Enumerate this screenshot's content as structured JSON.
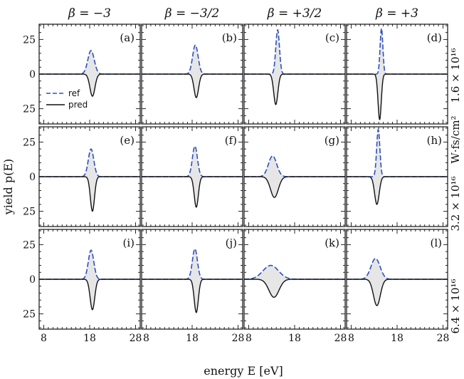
{
  "figure": {
    "ylabel": "yield p(E)",
    "xlabel": "energy E [eV]",
    "intensity_unit": "W·fs/cm²",
    "column_titles": [
      "β = −3",
      "β = −3/2",
      "β = +3/2",
      "β = +3"
    ],
    "row_titles": [
      "1.6 × 10¹⁶",
      "3.2 × 10¹⁶",
      "6.4 × 10¹⁶"
    ],
    "legend": {
      "ref": "ref",
      "pred": "pred"
    }
  },
  "chart_data": {
    "type": "line",
    "layout": "grid 3 rows × 4 columns, shared axes",
    "xlim": [
      7,
      29
    ],
    "ylim": [
      -36,
      36
    ],
    "x_ticks": [
      8,
      18,
      28
    ],
    "x_tick_labels": [
      "8",
      "18",
      "28"
    ],
    "y_ticks": [
      25,
      0,
      -25
    ],
    "y_tick_labels": [
      "25",
      "0",
      "25"
    ],
    "colors": {
      "ref": "#2f4fbf",
      "pred": "#111111",
      "fill": "#e6e6e6"
    },
    "series_note": "ref plotted upward (dashed blue), pred plotted downward (solid black), each peak is a single spectral line",
    "panels": [
      {
        "label": "(a)",
        "row": 0,
        "col": 0,
        "ref_peak": {
          "center": 18.3,
          "height": 17,
          "width": 0.7
        },
        "pred_peak": {
          "center": 18.6,
          "height": 16,
          "width": 0.55
        }
      },
      {
        "label": "(b)",
        "row": 0,
        "col": 1,
        "ref_peak": {
          "center": 18.7,
          "height": 21,
          "width": 0.6
        },
        "pred_peak": {
          "center": 18.9,
          "height": 17,
          "width": 0.5
        }
      },
      {
        "label": "(c)",
        "row": 0,
        "col": 2,
        "ref_peak": {
          "center": 14.3,
          "height": 32,
          "width": 0.4
        },
        "pred_peak": {
          "center": 13.9,
          "height": 22,
          "width": 0.45
        }
      },
      {
        "label": "(d)",
        "row": 0,
        "col": 3,
        "ref_peak": {
          "center": 14.6,
          "height": 33,
          "width": 0.3
        },
        "pred_peak": {
          "center": 14.2,
          "height": 33,
          "width": 0.35
        }
      },
      {
        "label": "(e)",
        "row": 1,
        "col": 0,
        "ref_peak": {
          "center": 18.3,
          "height": 20,
          "width": 0.6
        },
        "pred_peak": {
          "center": 18.6,
          "height": 25,
          "width": 0.45
        }
      },
      {
        "label": "(f)",
        "row": 1,
        "col": 1,
        "ref_peak": {
          "center": 18.6,
          "height": 22,
          "width": 0.55
        },
        "pred_peak": {
          "center": 18.9,
          "height": 22,
          "width": 0.45
        }
      },
      {
        "label": "(g)",
        "row": 1,
        "col": 2,
        "ref_peak": {
          "center": 13.2,
          "height": 15,
          "width": 0.9
        },
        "pred_peak": {
          "center": 13.6,
          "height": 15,
          "width": 0.85
        }
      },
      {
        "label": "(h)",
        "row": 1,
        "col": 3,
        "ref_peak": {
          "center": 13.9,
          "height": 34,
          "width": 0.35
        },
        "pred_peak": {
          "center": 13.6,
          "height": 20,
          "width": 0.5
        }
      },
      {
        "label": "(i)",
        "row": 2,
        "col": 0,
        "ref_peak": {
          "center": 18.3,
          "height": 21,
          "width": 0.6
        },
        "pred_peak": {
          "center": 18.6,
          "height": 22,
          "width": 0.5
        }
      },
      {
        "label": "(j)",
        "row": 2,
        "col": 1,
        "ref_peak": {
          "center": 18.6,
          "height": 22,
          "width": 0.55
        },
        "pred_peak": {
          "center": 18.9,
          "height": 24,
          "width": 0.45
        }
      },
      {
        "label": "(k)",
        "row": 2,
        "col": 2,
        "ref_peak": {
          "center": 12.8,
          "height": 10,
          "width": 1.7
        },
        "pred_peak": {
          "center": 13.5,
          "height": 13,
          "width": 1.1
        }
      },
      {
        "label": "(l)",
        "row": 2,
        "col": 3,
        "ref_peak": {
          "center": 13.3,
          "height": 15,
          "width": 1.0
        },
        "pred_peak": {
          "center": 13.6,
          "height": 19,
          "width": 0.75
        }
      }
    ]
  }
}
